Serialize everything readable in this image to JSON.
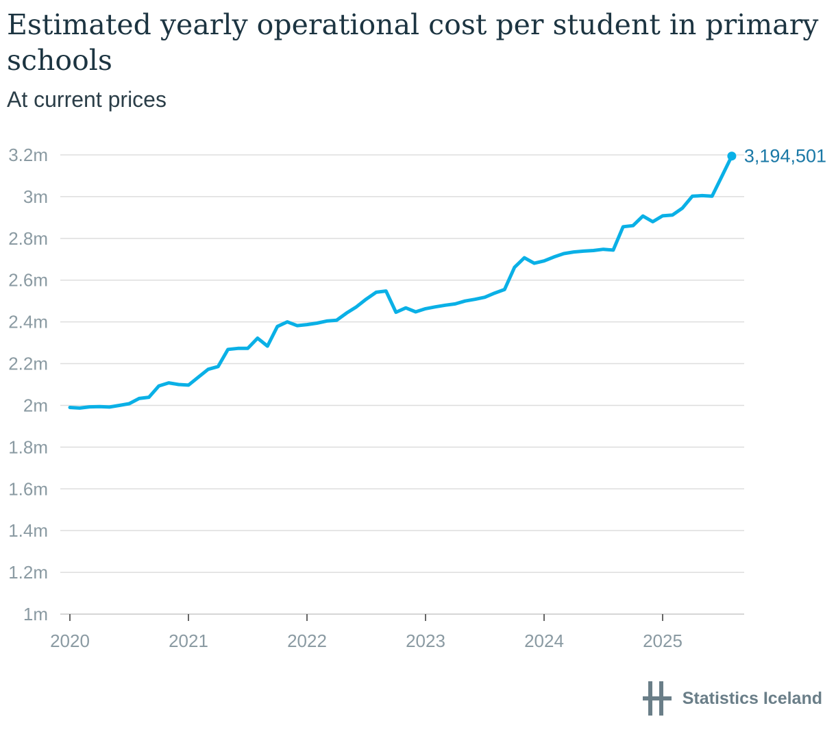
{
  "header": {
    "title": "Estimated yearly operational cost per student in primary schools",
    "subtitle": "At current prices"
  },
  "branding": {
    "name": "Statistics Iceland"
  },
  "colors": {
    "line": "#0ab0e6",
    "end_label": "#1a78a6",
    "grid": "#dddddd",
    "tick_text": "#8a9aa2"
  },
  "chart_data": {
    "type": "line",
    "title": "Estimated yearly operational cost per student in primary schools",
    "subtitle": "At current prices",
    "xlabel": "",
    "ylabel": "",
    "ylim": [
      1000000,
      3200000
    ],
    "xlim": [
      2020.0,
      2025.95
    ],
    "grid": "horizontal",
    "yticks": [
      {
        "value": 1000000,
        "label": "1m"
      },
      {
        "value": 1200000,
        "label": "1.2m"
      },
      {
        "value": 1400000,
        "label": "1.4m"
      },
      {
        "value": 1600000,
        "label": "1.6m"
      },
      {
        "value": 1800000,
        "label": "1.8m"
      },
      {
        "value": 2000000,
        "label": "2m"
      },
      {
        "value": 2200000,
        "label": "2.2m"
      },
      {
        "value": 2400000,
        "label": "2.4m"
      },
      {
        "value": 2600000,
        "label": "2.6m"
      },
      {
        "value": 2800000,
        "label": "2.8m"
      },
      {
        "value": 3000000,
        "label": "3m"
      },
      {
        "value": 3200000,
        "label": "3.2m"
      }
    ],
    "xticks": [
      {
        "value": 2020,
        "label": "2020"
      },
      {
        "value": 2021,
        "label": "2021"
      },
      {
        "value": 2022,
        "label": "2022"
      },
      {
        "value": 2023,
        "label": "2023"
      },
      {
        "value": 2024,
        "label": "2024"
      },
      {
        "value": 2025,
        "label": "2025"
      }
    ],
    "end_label": "3,194,501",
    "series": [
      {
        "x": [
          "2020-01",
          "2020-02",
          "2020-03",
          "2020-04",
          "2020-05",
          "2020-06",
          "2020-07",
          "2020-08",
          "2020-09",
          "2020-10",
          "2020-11",
          "2020-12",
          "2021-01",
          "2021-02",
          "2021-03",
          "2021-04",
          "2021-05",
          "2021-06",
          "2021-07",
          "2021-08",
          "2021-09",
          "2021-10",
          "2021-11",
          "2021-12",
          "2022-01",
          "2022-02",
          "2022-03",
          "2022-04",
          "2022-05",
          "2022-06",
          "2022-07",
          "2022-08",
          "2022-09",
          "2022-10",
          "2022-11",
          "2022-12",
          "2023-01",
          "2023-02",
          "2023-03",
          "2023-04",
          "2023-05",
          "2023-06",
          "2023-07",
          "2023-08",
          "2023-09",
          "2023-10",
          "2023-11",
          "2023-12",
          "2024-01",
          "2024-02",
          "2024-03",
          "2024-04",
          "2024-05",
          "2024-06",
          "2024-07",
          "2024-08",
          "2024-09",
          "2024-10",
          "2024-11",
          "2024-12",
          "2025-01",
          "2025-02",
          "2025-03",
          "2025-04",
          "2025-05",
          "2025-06",
          "2025-07",
          "2025-08"
        ],
        "values": [
          1990000,
          1987000,
          1993000,
          1994000,
          1992000,
          2000000,
          2008000,
          2033000,
          2039000,
          2093000,
          2108000,
          2100000,
          2097000,
          2135000,
          2173000,
          2186000,
          2268000,
          2273000,
          2273000,
          2322000,
          2284000,
          2378000,
          2400000,
          2382000,
          2387000,
          2394000,
          2404000,
          2408000,
          2442000,
          2472000,
          2509000,
          2542000,
          2548000,
          2446000,
          2467000,
          2448000,
          2463000,
          2472000,
          2480000,
          2486000,
          2500000,
          2508000,
          2518000,
          2538000,
          2555000,
          2661000,
          2707000,
          2681000,
          2692000,
          2711000,
          2727000,
          2735000,
          2739000,
          2742000,
          2748000,
          2744000,
          2856000,
          2861000,
          2907000,
          2880000,
          2908000,
          2912000,
          2945000,
          3002000,
          3005000,
          3002000,
          3098000,
          3194501
        ]
      }
    ]
  }
}
